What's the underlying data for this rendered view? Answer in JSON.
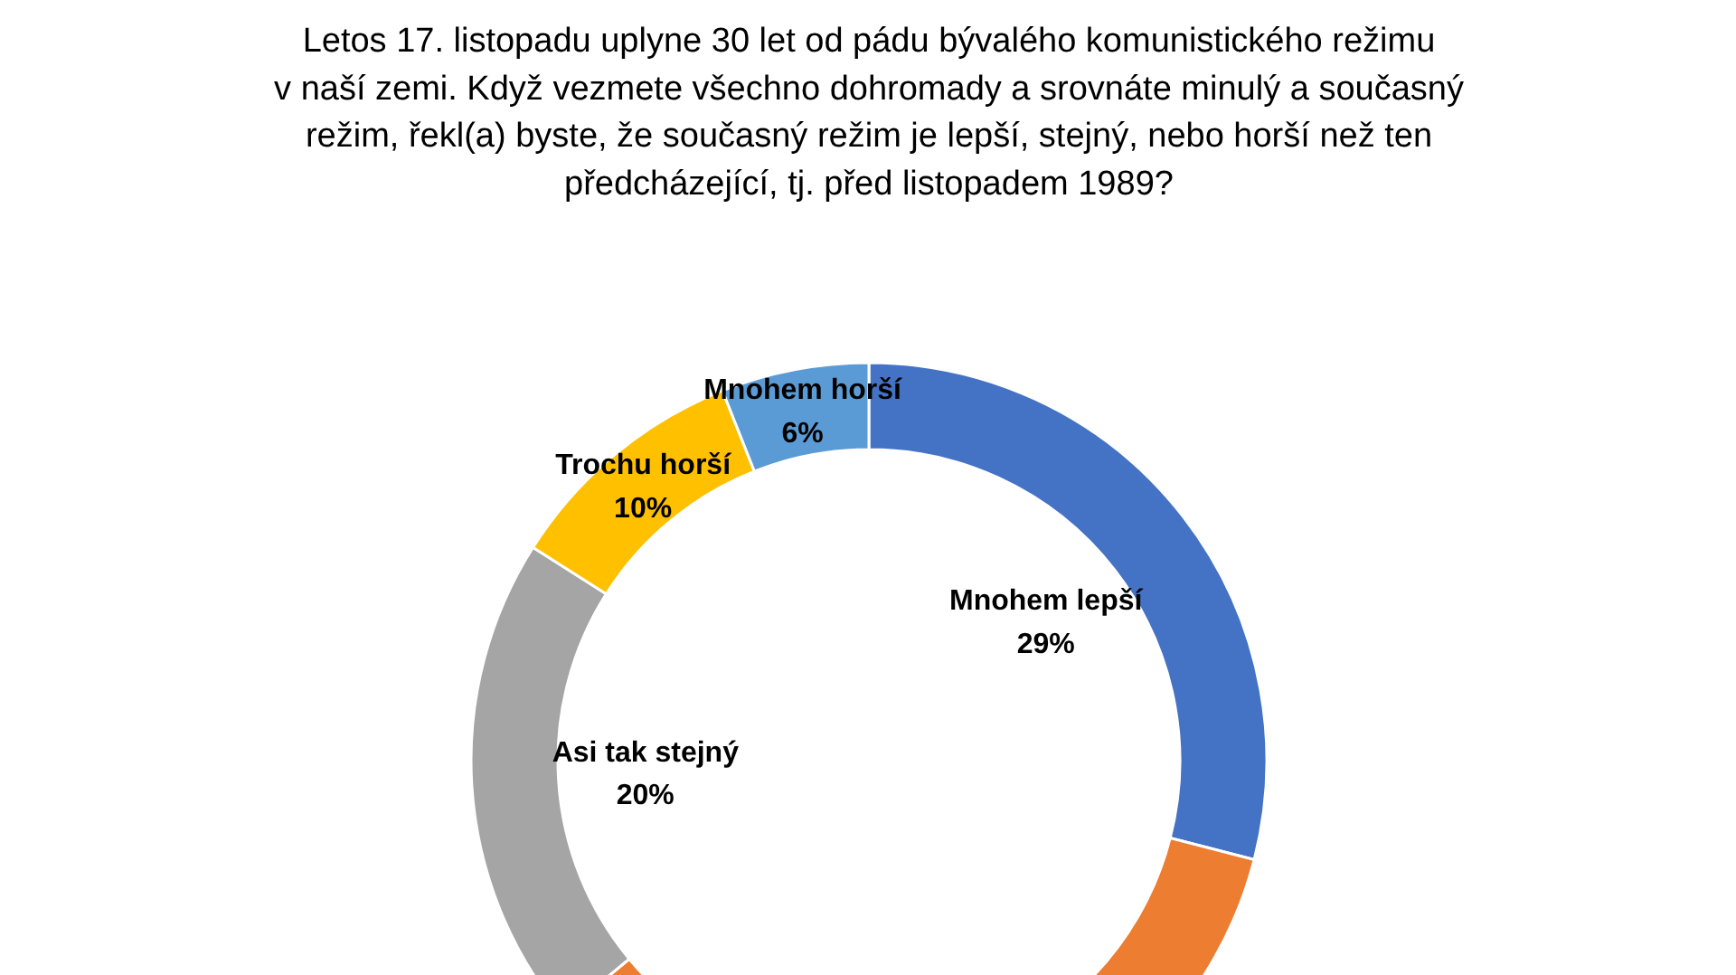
{
  "chart_data": {
    "type": "donut",
    "title": "Letos 17. listopadu uplyne 30 let od pádu bývalého komunistického režimu\nv naší zemi. Když vezmete všechno dohromady a srovnáte minulý a současný\nrežim, řekl(a) byste, že současný režim je lepší, stejný, nebo horší než ten\npředcházející, tj. před listopadem 1989?",
    "categories": [
      "Mnohem lepší",
      null,
      "Asi tak stejný",
      "Trochu horší",
      "Mnohem horší"
    ],
    "values": [
      29,
      35,
      20,
      10,
      6
    ],
    "colors": [
      "#4472c4",
      "#ed7d31",
      "#a5a5a5",
      "#ffc000",
      "#5b9bd5"
    ],
    "value_labels": [
      "29%",
      null,
      "20%",
      "10%",
      "6%"
    ]
  }
}
